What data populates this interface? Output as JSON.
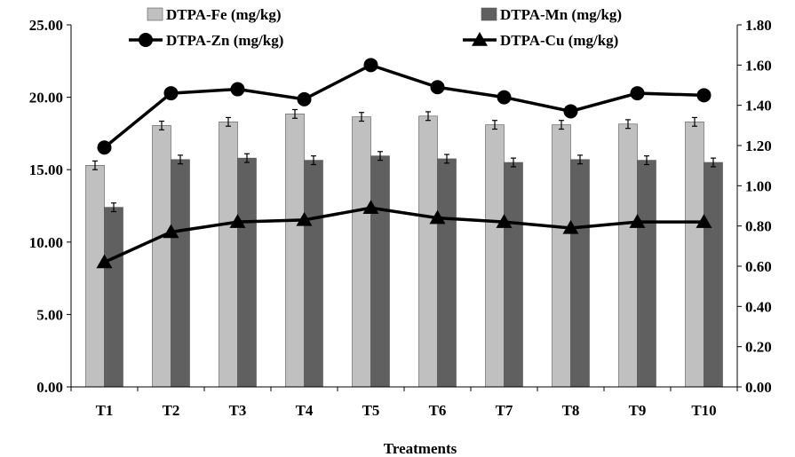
{
  "chart_data": {
    "type": "bar",
    "title": "",
    "xlabel": "Treatments",
    "ylabel": "",
    "y2label": "",
    "categories": [
      "T1",
      "T2",
      "T3",
      "T4",
      "T5",
      "T6",
      "T7",
      "T8",
      "T9",
      "T10"
    ],
    "ylim": [
      0,
      25
    ],
    "y_ticks": [
      "0.00",
      "5.00",
      "10.00",
      "15.00",
      "20.00",
      "25.00"
    ],
    "y2lim": [
      0,
      1.8
    ],
    "y2_ticks": [
      "0.00",
      "0.20",
      "0.40",
      "0.60",
      "0.80",
      "1.00",
      "1.20",
      "1.40",
      "1.60",
      "1.80"
    ],
    "grid": false,
    "legend_position": "top",
    "bar_series": [
      {
        "name": "DTPA-Fe (mg/kg)",
        "axis": "left",
        "color": "#c0c0c0",
        "values": [
          15.3,
          18.05,
          18.3,
          18.85,
          18.65,
          18.7,
          18.1,
          18.1,
          18.15,
          18.3
        ],
        "errors": [
          0.3,
          0.3,
          0.3,
          0.3,
          0.3,
          0.3,
          0.3,
          0.3,
          0.3,
          0.3
        ]
      },
      {
        "name": "DTPA-Mn (mg/kg)",
        "axis": "left",
        "color": "#606060",
        "values": [
          12.4,
          15.7,
          15.8,
          15.65,
          15.95,
          15.75,
          15.5,
          15.7,
          15.65,
          15.5
        ],
        "errors": [
          0.3,
          0.3,
          0.3,
          0.3,
          0.3,
          0.3,
          0.3,
          0.3,
          0.3,
          0.3
        ]
      }
    ],
    "line_series": [
      {
        "name": "DTPA-Zn (mg/kg)",
        "axis": "right",
        "marker": "circle",
        "color": "#000000",
        "values": [
          1.19,
          1.46,
          1.48,
          1.43,
          1.6,
          1.49,
          1.44,
          1.37,
          1.46,
          1.45
        ]
      },
      {
        "name": "DTPA-Cu (mg/kg)",
        "axis": "right",
        "marker": "triangle",
        "color": "#000000",
        "values": [
          0.62,
          0.77,
          0.82,
          0.83,
          0.89,
          0.84,
          0.82,
          0.79,
          0.82,
          0.82
        ]
      }
    ]
  }
}
